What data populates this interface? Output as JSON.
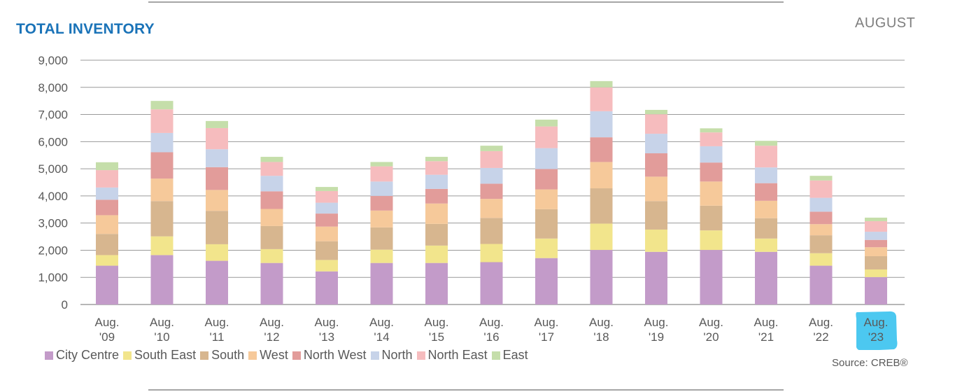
{
  "header": {
    "title": "TOTAL INVENTORY",
    "month": "AUGUST"
  },
  "footer": {
    "source": "Source: CREB®"
  },
  "chart_data": {
    "type": "bar",
    "stacked": true,
    "title": "TOTAL INVENTORY",
    "xlabel": "",
    "ylabel": "",
    "ylim": [
      0,
      9000
    ],
    "yticks": [
      0,
      1000,
      2000,
      3000,
      4000,
      5000,
      6000,
      7000,
      8000,
      9000
    ],
    "ytick_labels": [
      "0",
      "1,000",
      "2,000",
      "3,000",
      "4,000",
      "5,000",
      "6,000",
      "7,000",
      "8,000",
      "9,000"
    ],
    "grid": true,
    "legend_position": "bottom",
    "categories": [
      [
        "Aug.",
        "'09"
      ],
      [
        "Aug.",
        "'10"
      ],
      [
        "Aug.",
        "'11"
      ],
      [
        "Aug.",
        "'12"
      ],
      [
        "Aug.",
        "'13"
      ],
      [
        "Aug.",
        "'14"
      ],
      [
        "Aug.",
        "'15"
      ],
      [
        "Aug.",
        "'16"
      ],
      [
        "Aug.",
        "'17"
      ],
      [
        "Aug.",
        "'18"
      ],
      [
        "Aug.",
        "'19"
      ],
      [
        "Aug.",
        "'20"
      ],
      [
        "Aug.",
        "'21"
      ],
      [
        "Aug.",
        "'22"
      ],
      [
        "Aug.",
        "'23"
      ]
    ],
    "highlight_index": 14,
    "highlight_color": "#4cc8f0",
    "series": [
      {
        "name": "City Centre",
        "color": "#c39bc9",
        "values": [
          1430,
          1820,
          1610,
          1530,
          1220,
          1530,
          1530,
          1560,
          1710,
          2010,
          1940,
          2010,
          1940,
          1430,
          1010
        ]
      },
      {
        "name": "South East",
        "color": "#f2e58c",
        "values": [
          390,
          690,
          610,
          510,
          420,
          490,
          640,
          670,
          720,
          970,
          820,
          720,
          490,
          460,
          280
        ]
      },
      {
        "name": "South",
        "color": "#d7b68f",
        "values": [
          780,
          1300,
          1230,
          850,
          690,
          820,
          800,
          960,
          1080,
          1300,
          1050,
          910,
          750,
          660,
          490
        ]
      },
      {
        "name": "West",
        "color": "#f6c99a",
        "values": [
          690,
          830,
          770,
          630,
          540,
          620,
          750,
          700,
          730,
          970,
          900,
          890,
          640,
          410,
          330
        ]
      },
      {
        "name": "North West",
        "color": "#e29c9a",
        "values": [
          570,
          970,
          840,
          650,
          480,
          540,
          540,
          560,
          750,
          910,
          860,
          700,
          650,
          460,
          270
        ]
      },
      {
        "name": "North",
        "color": "#c7d3e9",
        "values": [
          450,
          710,
          660,
          570,
          400,
          530,
          520,
          580,
          770,
          960,
          720,
          600,
          580,
          510,
          300
        ]
      },
      {
        "name": "North East",
        "color": "#f6bcbe",
        "values": [
          640,
          870,
          780,
          510,
          430,
          560,
          500,
          620,
          800,
          880,
          720,
          510,
          800,
          640,
          390
        ]
      },
      {
        "name": "East",
        "color": "#c5deaa",
        "values": [
          290,
          310,
          260,
          190,
          150,
          160,
          160,
          200,
          250,
          230,
          160,
          150,
          180,
          170,
          130
        ]
      }
    ]
  }
}
